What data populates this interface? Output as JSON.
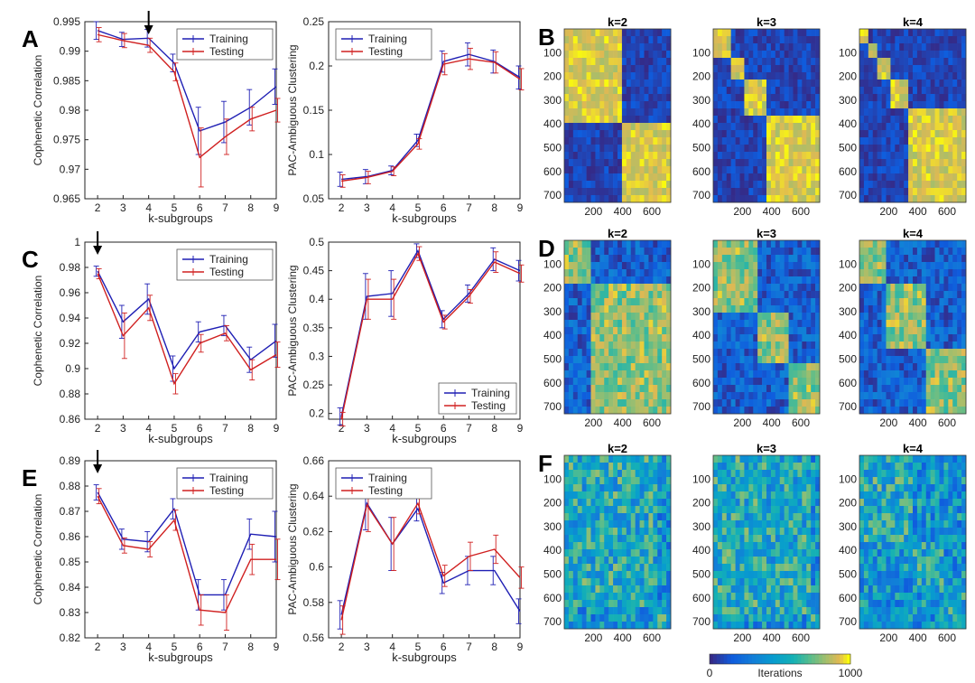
{
  "panels": [
    {
      "letter": "A",
      "metric": "cophenetic",
      "y_label": "Cophenetic Correlation",
      "x_label": "k-subgroups",
      "ylim": [
        0.965,
        0.995
      ],
      "yticks": [
        "0.965",
        "0.97",
        "0.975",
        "0.98",
        "0.985",
        "0.99",
        "0.995"
      ],
      "x": [
        2,
        3,
        4,
        5,
        6,
        7,
        8,
        9
      ],
      "legend": [
        "Training",
        "Testing"
      ],
      "arrow_at": 4,
      "training": [
        0.9935,
        0.992,
        0.9922,
        0.988,
        0.9765,
        0.978,
        0.9805,
        0.984
      ],
      "testing": [
        0.9928,
        0.9918,
        0.991,
        0.9865,
        0.972,
        0.9755,
        0.9785,
        0.98
      ],
      "err_train": [
        0.0015,
        0.0012,
        0.0015,
        0.0015,
        0.004,
        0.0035,
        0.003,
        0.003
      ],
      "err_test": [
        0.0012,
        0.0012,
        0.0012,
        0.0015,
        0.005,
        0.003,
        0.002,
        0.002
      ]
    },
    {
      "letter": "",
      "metric": "pac",
      "y_label": "PAC-Ambiguous Clustering",
      "x_label": "k-subgroups",
      "ylim": [
        0.05,
        0.25
      ],
      "yticks": [
        "0.05",
        "0.1",
        "0.15",
        "0.2",
        "0.25"
      ],
      "x": [
        2,
        3,
        4,
        5,
        6,
        7,
        8,
        9
      ],
      "legend": [
        "Training",
        "Testing"
      ],
      "arrow_at": null,
      "training": [
        0.072,
        0.075,
        0.082,
        0.116,
        0.205,
        0.213,
        0.205,
        0.187
      ],
      "testing": [
        0.07,
        0.074,
        0.081,
        0.112,
        0.202,
        0.208,
        0.204,
        0.185
      ],
      "err_train": [
        0.008,
        0.008,
        0.005,
        0.007,
        0.012,
        0.013,
        0.013,
        0.013
      ],
      "err_test": [
        0.007,
        0.007,
        0.005,
        0.006,
        0.012,
        0.012,
        0.012,
        0.012
      ]
    },
    {
      "letter": "C",
      "metric": "cophenetic",
      "y_label": "Cophenetic Correlation",
      "x_label": "k-subgroups",
      "ylim": [
        0.86,
        1.0
      ],
      "yticks": [
        "0.86",
        "0.88",
        "0.9",
        "0.92",
        "0.94",
        "0.96",
        "0.98",
        "1"
      ],
      "x": [
        2,
        3,
        4,
        5,
        6,
        7,
        8,
        9
      ],
      "legend": [
        "Training",
        "Testing"
      ],
      "arrow_at": 2,
      "training": [
        0.977,
        0.937,
        0.955,
        0.9,
        0.929,
        0.934,
        0.907,
        0.922
      ],
      "testing": [
        0.975,
        0.926,
        0.948,
        0.888,
        0.92,
        0.928,
        0.899,
        0.911
      ],
      "err_train": [
        0.004,
        0.013,
        0.012,
        0.01,
        0.008,
        0.008,
        0.01,
        0.013
      ],
      "err_test": [
        0.004,
        0.018,
        0.01,
        0.008,
        0.007,
        0.006,
        0.008,
        0.01
      ]
    },
    {
      "letter": "",
      "metric": "pac",
      "y_label": "PAC-Ambiguous Clustering",
      "x_label": "k-subgroups",
      "ylim": [
        0.19,
        0.5
      ],
      "yticks": [
        "0.2",
        "0.25",
        "0.3",
        "0.35",
        "0.4",
        "0.45",
        "0.5"
      ],
      "x": [
        2,
        3,
        4,
        5,
        6,
        7,
        8,
        9
      ],
      "legend": [
        "Training",
        "Testing"
      ],
      "arrow_at": null,
      "training": [
        0.195,
        0.405,
        0.41,
        0.485,
        0.365,
        0.41,
        0.47,
        0.45
      ],
      "testing": [
        0.19,
        0.4,
        0.4,
        0.48,
        0.36,
        0.405,
        0.465,
        0.445
      ],
      "err_train": [
        0.015,
        0.04,
        0.04,
        0.012,
        0.015,
        0.015,
        0.02,
        0.018
      ],
      "err_test": [
        0.012,
        0.035,
        0.035,
        0.012,
        0.012,
        0.012,
        0.018,
        0.015
      ]
    },
    {
      "letter": "E",
      "metric": "cophenetic",
      "y_label": "Cophenetic Correlation",
      "x_label": "k-subgroups",
      "ylim": [
        0.82,
        0.89
      ],
      "yticks": [
        "0.82",
        "0.83",
        "0.84",
        "0.85",
        "0.86",
        "0.87",
        "0.88",
        "0.89"
      ],
      "x": [
        2,
        3,
        4,
        5,
        6,
        7,
        8,
        9
      ],
      "legend": [
        "Training",
        "Testing"
      ],
      "arrow_at": 2,
      "training": [
        0.8775,
        0.859,
        0.858,
        0.871,
        0.837,
        0.837,
        0.861,
        0.86
      ],
      "testing": [
        0.876,
        0.8565,
        0.855,
        0.8665,
        0.831,
        0.83,
        0.851,
        0.851
      ],
      "err_train": [
        0.003,
        0.004,
        0.004,
        0.004,
        0.006,
        0.006,
        0.006,
        0.01
      ],
      "err_test": [
        0.003,
        0.003,
        0.003,
        0.004,
        0.006,
        0.007,
        0.006,
        0.008
      ]
    },
    {
      "letter": "",
      "metric": "pac",
      "y_label": "PAC-Ambiguous Clustering",
      "x_label": "k-subgroups",
      "ylim": [
        0.56,
        0.66
      ],
      "yticks": [
        "0.56",
        "0.58",
        "0.6",
        "0.62",
        "0.64",
        "0.66"
      ],
      "x": [
        2,
        3,
        4,
        5,
        6,
        7,
        8,
        9
      ],
      "legend": [
        "Training",
        "Testing"
      ],
      "arrow_at": null,
      "training": [
        0.573,
        0.636,
        0.613,
        0.633,
        0.591,
        0.598,
        0.598,
        0.575
      ],
      "testing": [
        0.57,
        0.635,
        0.613,
        0.636,
        0.595,
        0.606,
        0.61,
        0.594
      ],
      "err_train": [
        0.008,
        0.015,
        0.015,
        0.007,
        0.006,
        0.008,
        0.008,
        0.007
      ],
      "err_test": [
        0.008,
        0.015,
        0.015,
        0.006,
        0.006,
        0.008,
        0.008,
        0.006
      ]
    }
  ],
  "heatmaps": [
    {
      "letter": "B",
      "row": 0,
      "pattern": "clean",
      "maps": [
        {
          "title": "k=2",
          "blocks": [
            400,
            330
          ]
        },
        {
          "title": "k=3",
          "blocks": [
            120,
            90,
            160,
            360
          ]
        },
        {
          "title": "k=4",
          "blocks": [
            50,
            70,
            100,
            110,
            400
          ]
        }
      ]
    },
    {
      "letter": "D",
      "row": 1,
      "pattern": "medium",
      "maps": [
        {
          "title": "k=2",
          "blocks": [
            180,
            550
          ]
        },
        {
          "title": "k=3",
          "blocks": [
            290,
            240,
            200
          ]
        },
        {
          "title": "k=4",
          "blocks": [
            180,
            280,
            270
          ]
        }
      ]
    },
    {
      "letter": "F",
      "row": 2,
      "pattern": "noisy",
      "maps": [
        {
          "title": "k=2",
          "blocks": [
            640,
            90
          ]
        },
        {
          "title": "k=3",
          "blocks": [
            660,
            70
          ]
        },
        {
          "title": "k=4",
          "blocks": [
            370,
            200,
            160
          ]
        }
      ]
    }
  ],
  "heat_axis": {
    "yticks": [
      "100",
      "200",
      "300",
      "400",
      "500",
      "600",
      "700"
    ],
    "xticks": [
      "200",
      "400",
      "600"
    ]
  },
  "colorbar": {
    "min_label": "0",
    "label": "Iterations",
    "max_label": "1000",
    "min": 0,
    "max": 1000
  },
  "colors": {
    "training": "#1f1fb4",
    "testing": "#d02020",
    "axis": "#222222"
  },
  "chart_data": [
    {
      "type": "line",
      "panel": "A",
      "title": "",
      "xlabel": "k-subgroups",
      "ylabel": "Cophenetic Correlation",
      "x": [
        2,
        3,
        4,
        5,
        6,
        7,
        8,
        9
      ],
      "ylim": [
        0.965,
        0.995
      ],
      "series": [
        {
          "name": "Training",
          "values": [
            0.9935,
            0.992,
            0.9922,
            0.988,
            0.9765,
            0.978,
            0.9805,
            0.984
          ]
        },
        {
          "name": "Testing",
          "values": [
            0.9928,
            0.9918,
            0.991,
            0.9865,
            0.972,
            0.9755,
            0.9785,
            0.98
          ]
        }
      ]
    },
    {
      "type": "line",
      "panel": "A-right",
      "title": "",
      "xlabel": "k-subgroups",
      "ylabel": "PAC-Ambiguous Clustering",
      "x": [
        2,
        3,
        4,
        5,
        6,
        7,
        8,
        9
      ],
      "ylim": [
        0.05,
        0.25
      ],
      "series": [
        {
          "name": "Training",
          "values": [
            0.072,
            0.075,
            0.082,
            0.116,
            0.205,
            0.213,
            0.205,
            0.187
          ]
        },
        {
          "name": "Testing",
          "values": [
            0.07,
            0.074,
            0.081,
            0.112,
            0.202,
            0.208,
            0.204,
            0.185
          ]
        }
      ]
    },
    {
      "type": "line",
      "panel": "C",
      "title": "",
      "xlabel": "k-subgroups",
      "ylabel": "Cophenetic Correlation",
      "x": [
        2,
        3,
        4,
        5,
        6,
        7,
        8,
        9
      ],
      "ylim": [
        0.86,
        1.0
      ],
      "series": [
        {
          "name": "Training",
          "values": [
            0.977,
            0.937,
            0.955,
            0.9,
            0.929,
            0.934,
            0.907,
            0.922
          ]
        },
        {
          "name": "Testing",
          "values": [
            0.975,
            0.926,
            0.948,
            0.888,
            0.92,
            0.928,
            0.899,
            0.911
          ]
        }
      ]
    },
    {
      "type": "line",
      "panel": "C-right",
      "title": "",
      "xlabel": "k-subgroups",
      "ylabel": "PAC-Ambiguous Clustering",
      "x": [
        2,
        3,
        4,
        5,
        6,
        7,
        8,
        9
      ],
      "ylim": [
        0.19,
        0.5
      ],
      "series": [
        {
          "name": "Training",
          "values": [
            0.195,
            0.405,
            0.41,
            0.485,
            0.365,
            0.41,
            0.47,
            0.45
          ]
        },
        {
          "name": "Testing",
          "values": [
            0.19,
            0.4,
            0.4,
            0.48,
            0.36,
            0.405,
            0.465,
            0.445
          ]
        }
      ]
    },
    {
      "type": "line",
      "panel": "E",
      "title": "",
      "xlabel": "k-subgroups",
      "ylabel": "Cophenetic Correlation",
      "x": [
        2,
        3,
        4,
        5,
        6,
        7,
        8,
        9
      ],
      "ylim": [
        0.82,
        0.89
      ],
      "series": [
        {
          "name": "Training",
          "values": [
            0.8775,
            0.859,
            0.858,
            0.871,
            0.837,
            0.837,
            0.861,
            0.86
          ]
        },
        {
          "name": "Testing",
          "values": [
            0.876,
            0.8565,
            0.855,
            0.8665,
            0.831,
            0.83,
            0.851,
            0.851
          ]
        }
      ]
    },
    {
      "type": "line",
      "panel": "E-right",
      "title": "",
      "xlabel": "k-subgroups",
      "ylabel": "PAC-Ambiguous Clustering",
      "x": [
        2,
        3,
        4,
        5,
        6,
        7,
        8,
        9
      ],
      "ylim": [
        0.56,
        0.66
      ],
      "series": [
        {
          "name": "Training",
          "values": [
            0.573,
            0.636,
            0.613,
            0.633,
            0.591,
            0.598,
            0.598,
            0.575
          ]
        },
        {
          "name": "Testing",
          "values": [
            0.57,
            0.635,
            0.613,
            0.636,
            0.595,
            0.606,
            0.61,
            0.594
          ]
        }
      ]
    },
    {
      "type": "heatmap",
      "panel": "B",
      "titles": [
        "k=2",
        "k=3",
        "k=4"
      ],
      "axis_range": [
        0,
        730
      ],
      "zlim": [
        0,
        1000
      ],
      "zlabel": "Iterations"
    },
    {
      "type": "heatmap",
      "panel": "D",
      "titles": [
        "k=2",
        "k=3",
        "k=4"
      ],
      "axis_range": [
        0,
        730
      ],
      "zlim": [
        0,
        1000
      ],
      "zlabel": "Iterations"
    },
    {
      "type": "heatmap",
      "panel": "F",
      "titles": [
        "k=2",
        "k=3",
        "k=4"
      ],
      "axis_range": [
        0,
        730
      ],
      "zlim": [
        0,
        1000
      ],
      "zlabel": "Iterations"
    }
  ]
}
